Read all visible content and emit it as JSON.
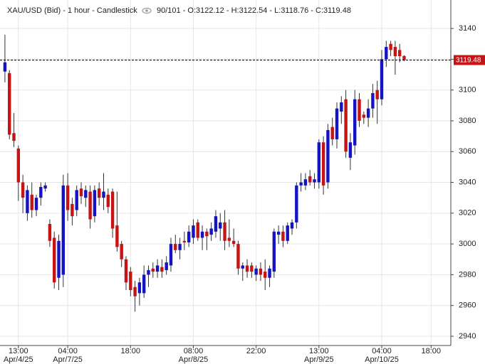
{
  "chart_data": {
    "type": "candlestick",
    "header": {
      "symbol_line": "XAU/USD (Bid) - 1 hour - Candlestick",
      "info": "90/101 - O:3122.12 - H:3122.54 - L:3118.76 - C:3119.48"
    },
    "up_color": "#1414c4",
    "down_color": "#c41414",
    "grid": true,
    "last_price": 3119.48,
    "ylim": [
      2934,
      3158.5
    ],
    "yticks": [
      2940,
      2960,
      2980,
      3000,
      3020,
      3040,
      3060,
      3080,
      3100,
      3120,
      3140
    ],
    "xlim": [
      -1.1,
      99.4
    ],
    "xticks": [
      {
        "value": 3,
        "label": "13:00",
        "date": "Apr/4/25"
      },
      {
        "value": 14,
        "label": "04:00",
        "date": "Apr/7/25"
      },
      {
        "value": 28,
        "label": "18:00"
      },
      {
        "value": 42,
        "label": "08:00",
        "date": "Apr/8/25"
      },
      {
        "value": 56,
        "label": "22:00"
      },
      {
        "value": 70,
        "label": "13:00",
        "date": "Apr/9/25"
      },
      {
        "value": 84,
        "label": "04:00",
        "date": "Apr/10/25"
      },
      {
        "value": 95,
        "label": "18:00"
      }
    ],
    "x": [
      0,
      1,
      2,
      3,
      4,
      5,
      6,
      7,
      8,
      9,
      10,
      11,
      12,
      13,
      14,
      15,
      16,
      17,
      18,
      19,
      20,
      21,
      22,
      23,
      24,
      25,
      26,
      27,
      28,
      29,
      30,
      31,
      32,
      33,
      34,
      35,
      36,
      37,
      38,
      39,
      40,
      41,
      42,
      43,
      44,
      45,
      46,
      47,
      48,
      49,
      50,
      51,
      52,
      53,
      54,
      55,
      56,
      57,
      58,
      59,
      60,
      61,
      62,
      63,
      64,
      65,
      66,
      67,
      68,
      69,
      70,
      71,
      72,
      73,
      74,
      75,
      76,
      77,
      78,
      79,
      80,
      81,
      82,
      83,
      84,
      85,
      86,
      87,
      88,
      89
    ],
    "open": [
      3112,
      3111,
      3072,
      3062,
      3040,
      3020,
      3032,
      3022,
      3030,
      3036,
      3013,
      3004,
      2978,
      2980,
      3038,
      3026,
      3022,
      3036,
      3030,
      3034,
      3018,
      3036,
      3030,
      3032,
      3034,
      3012,
      3000,
      2990,
      2982,
      2972,
      2968,
      2968,
      2980,
      2984,
      2982,
      2985,
      2983,
      2986,
      3000,
      2996,
      3002,
      3001,
      3004,
      3014,
      3004,
      3008,
      3006,
      3008,
      3010,
      3014,
      3004,
      3002,
      3000,
      2984,
      2986,
      2986,
      2980,
      2984,
      2982,
      2978,
      2982,
      3006,
      3008,
      3002,
      3010,
      3014,
      3038,
      3038,
      3044,
      3040,
      3040,
      3066,
      3040,
      3076,
      3068,
      3086,
      3094,
      3056,
      3064,
      3094,
      3084,
      3082,
      3088,
      3100,
      3094,
      3120,
      3130,
      3128,
      3126,
      3122.12
    ],
    "high": [
      3136,
      3113,
      3085,
      3064,
      3045,
      3038,
      3040,
      3032,
      3040,
      3040,
      3016,
      3008,
      3006,
      3045,
      3046,
      3030,
      3038,
      3040,
      3038,
      3038,
      3038,
      3040,
      3046,
      3036,
      3036,
      3034,
      3002,
      2992,
      2985,
      2976,
      2978,
      2986,
      2986,
      2988,
      2990,
      2990,
      2992,
      3004,
      3006,
      3004,
      3008,
      3012,
      3016,
      3016,
      3012,
      3010,
      3014,
      3022,
      3020,
      3022,
      3016,
      3010,
      3002,
      2988,
      2990,
      2988,
      2986,
      2988,
      2990,
      2986,
      3010,
      3012,
      3012,
      3014,
      3016,
      3040,
      3046,
      3046,
      3048,
      3046,
      3068,
      3070,
      3078,
      3082,
      3092,
      3096,
      3100,
      3072,
      3100,
      3098,
      3086,
      3094,
      3104,
      3106,
      3126,
      3132,
      3132,
      3132,
      3130,
      3122.54
    ],
    "low": [
      3105,
      3068,
      3063,
      3028,
      3020,
      3015,
      3017,
      3018,
      3025,
      3034,
      2998,
      2971,
      2970,
      2972,
      3015,
      3012,
      3018,
      3026,
      3024,
      3010,
      3014,
      3025,
      3022,
      3020,
      3004,
      2995,
      2985,
      2970,
      2966,
      2956,
      2960,
      2965,
      2972,
      2978,
      2978,
      2978,
      2980,
      2982,
      2994,
      2990,
      2996,
      2998,
      3000,
      3002,
      2996,
      2996,
      3002,
      3004,
      3002,
      2996,
      2998,
      2998,
      2980,
      2976,
      2978,
      2978,
      2976,
      2976,
      2970,
      2972,
      2978,
      3000,
      2998,
      3000,
      3006,
      3010,
      3034,
      3035,
      3038,
      3036,
      3036,
      3032,
      3036,
      3064,
      3062,
      3078,
      3056,
      3048,
      3058,
      3076,
      3078,
      3076,
      3082,
      3078,
      3090,
      3115,
      3122,
      3110,
      3118,
      3118.76
    ],
    "close": [
      3118,
      3071,
      3067,
      3040,
      3030,
      3035,
      3022,
      3030,
      3037,
      3038,
      3002,
      2975,
      3002,
      3038,
      3022,
      3018,
      3035,
      3031,
      3035,
      3016,
      3035,
      3030,
      3034,
      3024,
      3010,
      2998,
      2990,
      2975,
      2970,
      2966,
      2975,
      2980,
      2983,
      2982,
      2986,
      2982,
      2988,
      3000,
      2996,
      3000,
      3001,
      3008,
      3012,
      3004,
      3008,
      3005,
      3010,
      3018,
      3014,
      3002,
      3002,
      3000,
      2984,
      2986,
      2982,
      2982,
      2984,
      2980,
      2978,
      2984,
      3008,
      3008,
      3002,
      3012,
      3014,
      3038,
      3040,
      3042,
      3040,
      3042,
      3066,
      3038,
      3074,
      3068,
      3088,
      3092,
      3060,
      3066,
      3094,
      3080,
      3082,
      3088,
      3098,
      3094,
      3120,
      3128,
      3126,
      3122,
      3122,
      3119.48
    ]
  }
}
